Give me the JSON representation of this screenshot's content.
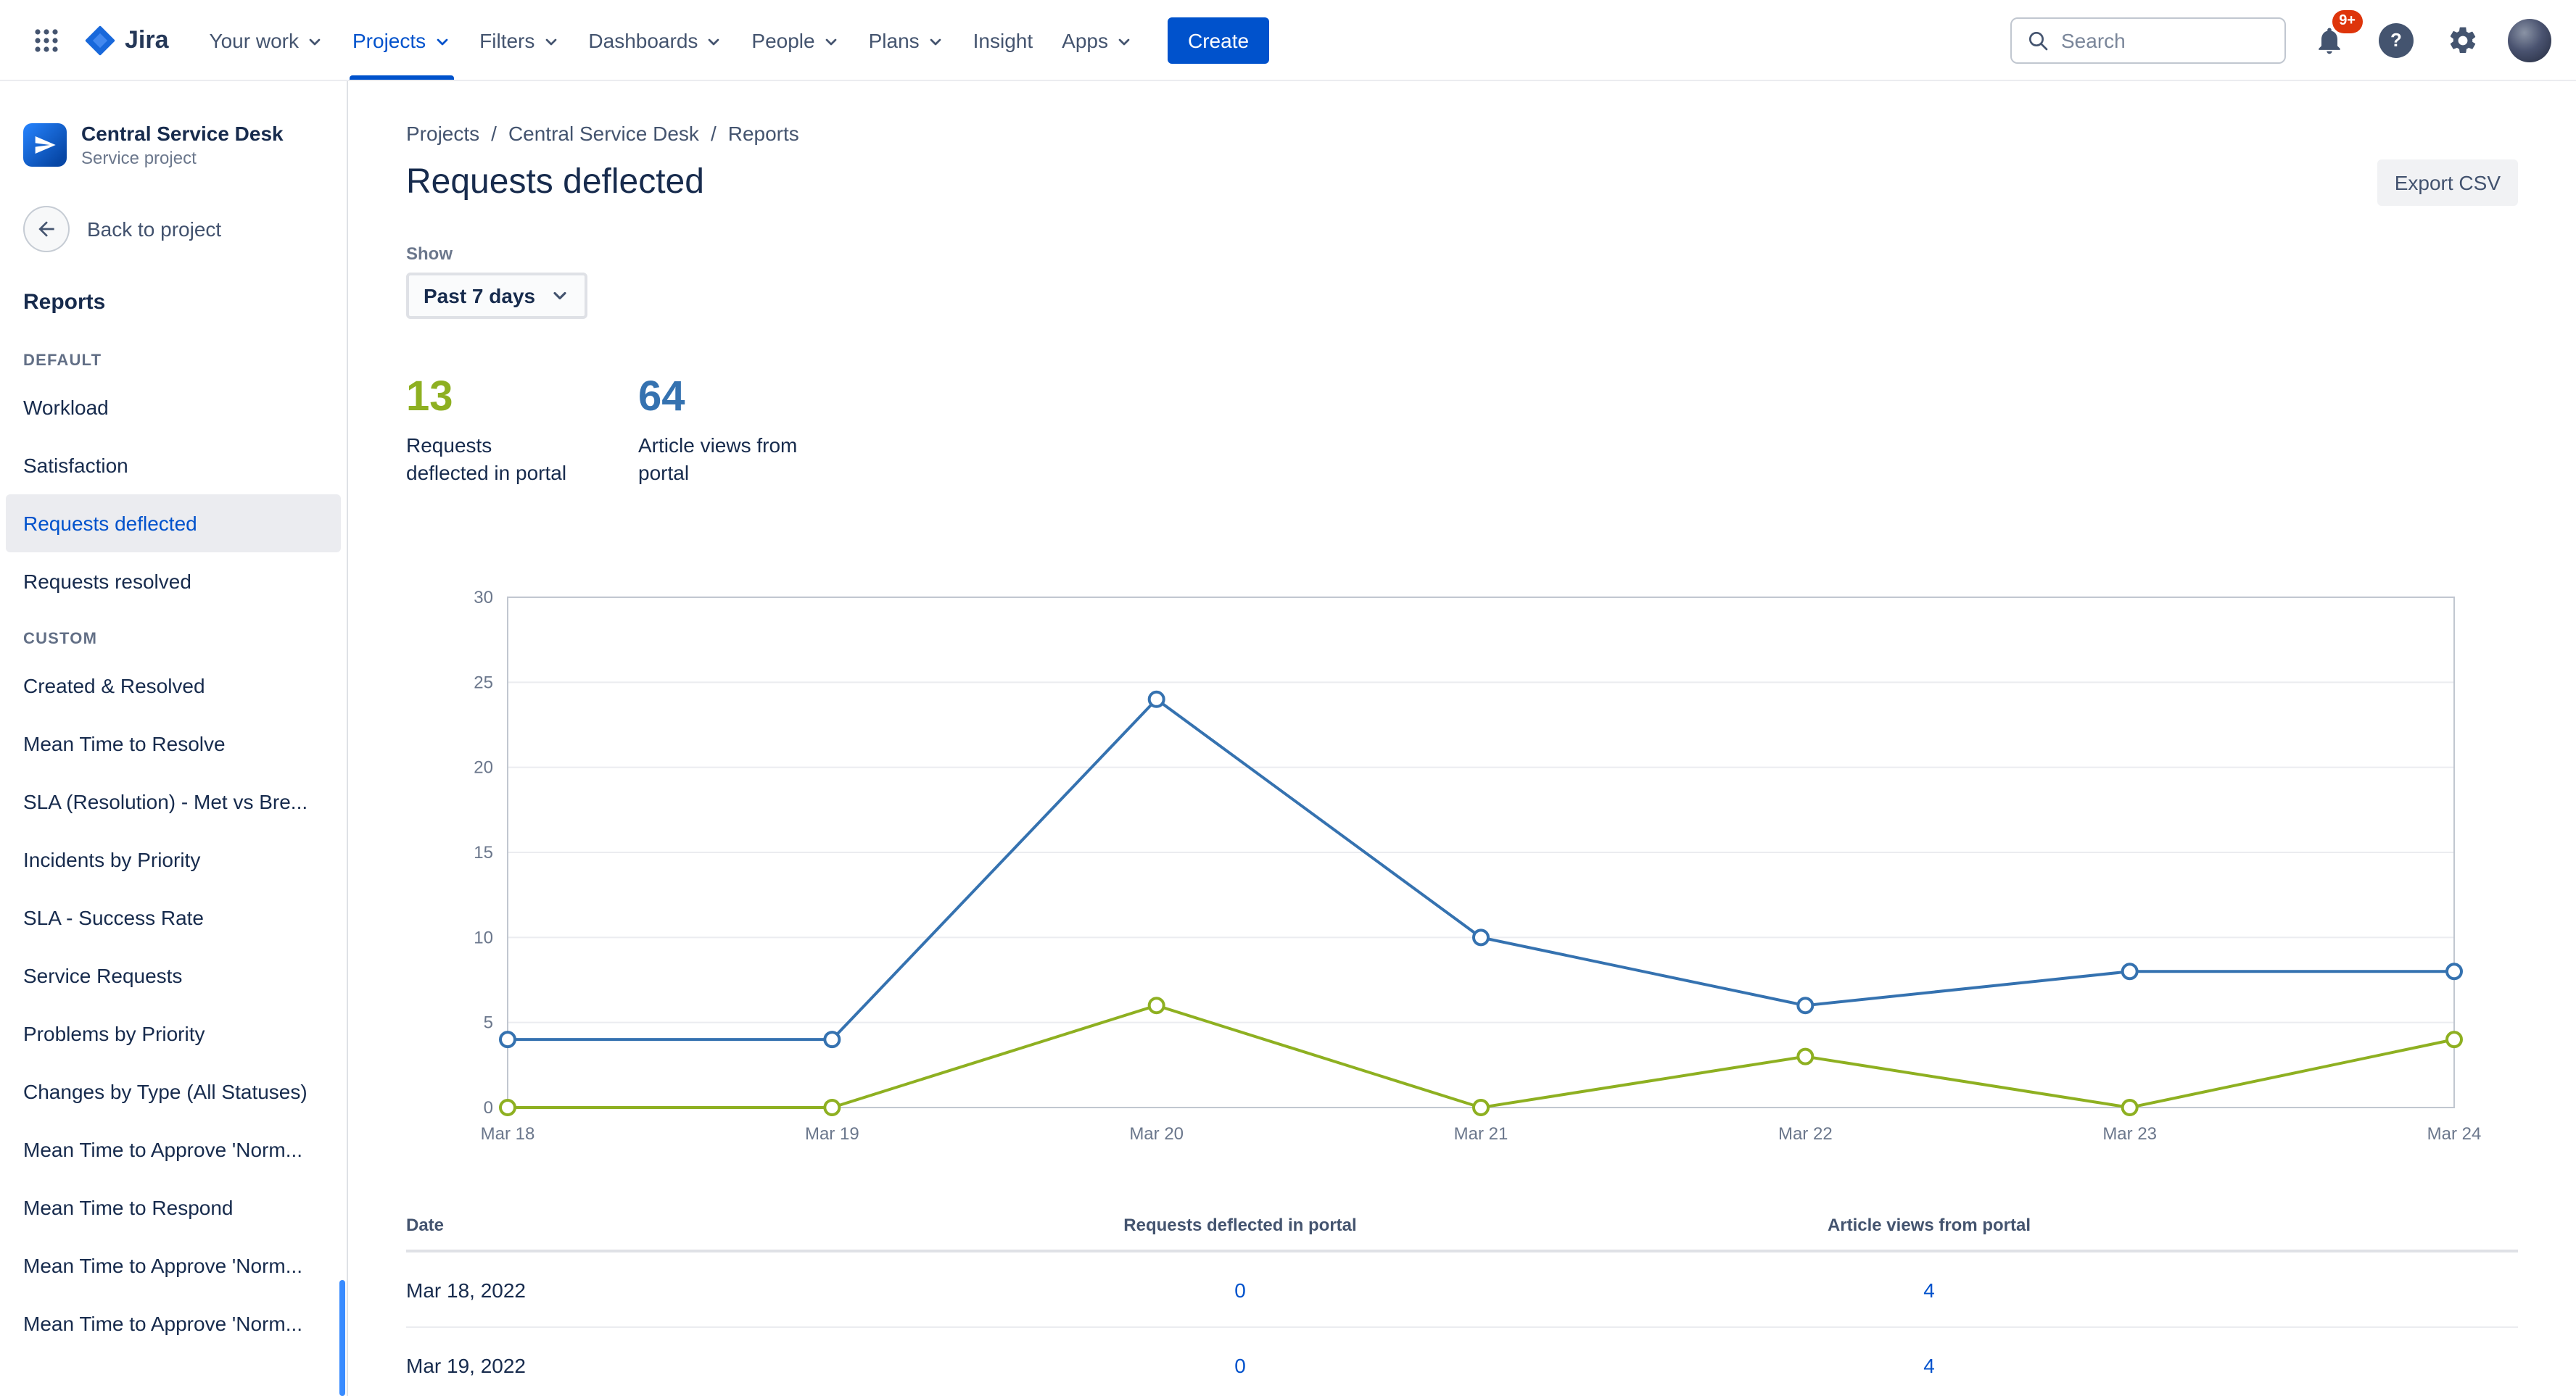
{
  "topnav": {
    "logo_text": "Jira",
    "items": [
      {
        "label": "Your work"
      },
      {
        "label": "Projects"
      },
      {
        "label": "Filters"
      },
      {
        "label": "Dashboards"
      },
      {
        "label": "People"
      },
      {
        "label": "Plans"
      },
      {
        "label": "Insight"
      },
      {
        "label": "Apps"
      }
    ],
    "active_item": "Projects",
    "create_label": "Create",
    "search_placeholder": "Search",
    "notification_badge": "9+"
  },
  "sidebar": {
    "project_name": "Central Service Desk",
    "project_type": "Service project",
    "back_label": "Back to project",
    "section_title": "Reports",
    "groups": [
      {
        "label": "DEFAULT",
        "items": [
          {
            "label": "Workload"
          },
          {
            "label": "Satisfaction"
          },
          {
            "label": "Requests deflected",
            "active": true
          },
          {
            "label": "Requests resolved"
          }
        ]
      },
      {
        "label": "CUSTOM",
        "items": [
          {
            "label": "Created & Resolved"
          },
          {
            "label": "Mean Time to Resolve"
          },
          {
            "label": "SLA (Resolution) - Met vs Bre..."
          },
          {
            "label": "Incidents by Priority"
          },
          {
            "label": "SLA - Success Rate"
          },
          {
            "label": "Service Requests"
          },
          {
            "label": "Problems by Priority"
          },
          {
            "label": "Changes by Type (All Statuses)"
          },
          {
            "label": "Mean Time to Approve 'Norm..."
          },
          {
            "label": "Mean Time to Respond"
          },
          {
            "label": "Mean Time to Approve 'Norm..."
          },
          {
            "label": "Mean Time to Approve 'Norm..."
          }
        ]
      }
    ]
  },
  "breadcrumb": {
    "items": [
      "Projects",
      "Central Service Desk",
      "Reports"
    ],
    "separator": "/"
  },
  "page": {
    "title": "Requests deflected",
    "export_label": "Export CSV",
    "show_label": "Show",
    "range_label": "Past 7 days"
  },
  "stats": [
    {
      "value": "13",
      "label": "Requests\ndeflected in portal",
      "color": "#8EB021"
    },
    {
      "value": "64",
      "label": "Article views from\nportal",
      "color": "#3572B0"
    }
  ],
  "chart_data": {
    "type": "line",
    "x": [
      "Mar 18",
      "Mar 19",
      "Mar 20",
      "Mar 21",
      "Mar 22",
      "Mar 23",
      "Mar 24"
    ],
    "series": [
      {
        "name": "Article views from portal",
        "color": "#3572B0",
        "values": [
          4,
          4,
          24,
          10,
          6,
          8,
          8
        ]
      },
      {
        "name": "Requests deflected in portal",
        "color": "#8EB021",
        "values": [
          0,
          0,
          6,
          0,
          3,
          0,
          4
        ]
      }
    ],
    "ylim": [
      0,
      30
    ],
    "ytick_step": 5,
    "grid": true,
    "legend": "none",
    "marker": "open-circle"
  },
  "table": {
    "columns": [
      "Date",
      "Requests deflected in portal",
      "Article views from portal"
    ],
    "rows": [
      {
        "date": "Mar 18, 2022",
        "deflected": "0",
        "views": "4"
      },
      {
        "date": "Mar 19, 2022",
        "deflected": "0",
        "views": "4"
      }
    ]
  },
  "colors": {
    "brand_blue": "#0052CC",
    "chart_blue": "#3572B0",
    "chart_green": "#8EB021",
    "badge_red": "#DE350B",
    "active_item_bg": "#EBECF0"
  }
}
